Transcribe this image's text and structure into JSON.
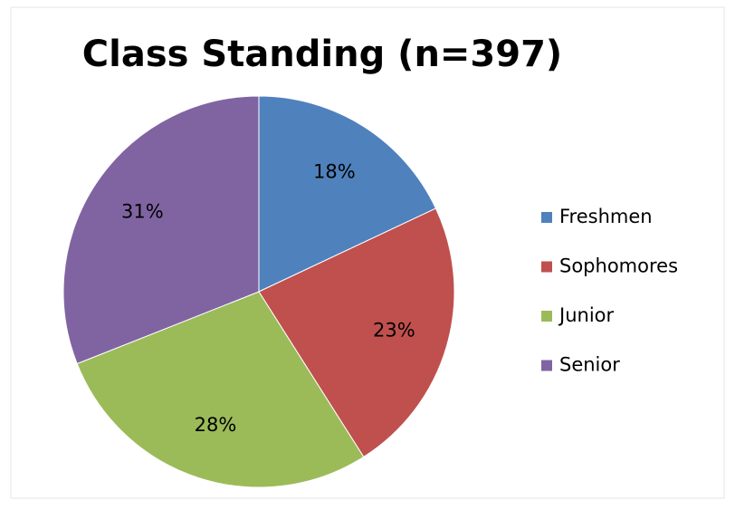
{
  "chart_data": {
    "type": "pie",
    "title": "Class Standing (n=397)",
    "categories": [
      "Freshmen",
      "Sophomores",
      "Junior",
      "Senior"
    ],
    "values": [
      18,
      23,
      28,
      31
    ],
    "value_labels": [
      "18%",
      "23%",
      "28%",
      "31%"
    ],
    "colors": [
      "#4f81bd",
      "#c0504d",
      "#9bbb59",
      "#8064a2"
    ],
    "legend": "right"
  }
}
